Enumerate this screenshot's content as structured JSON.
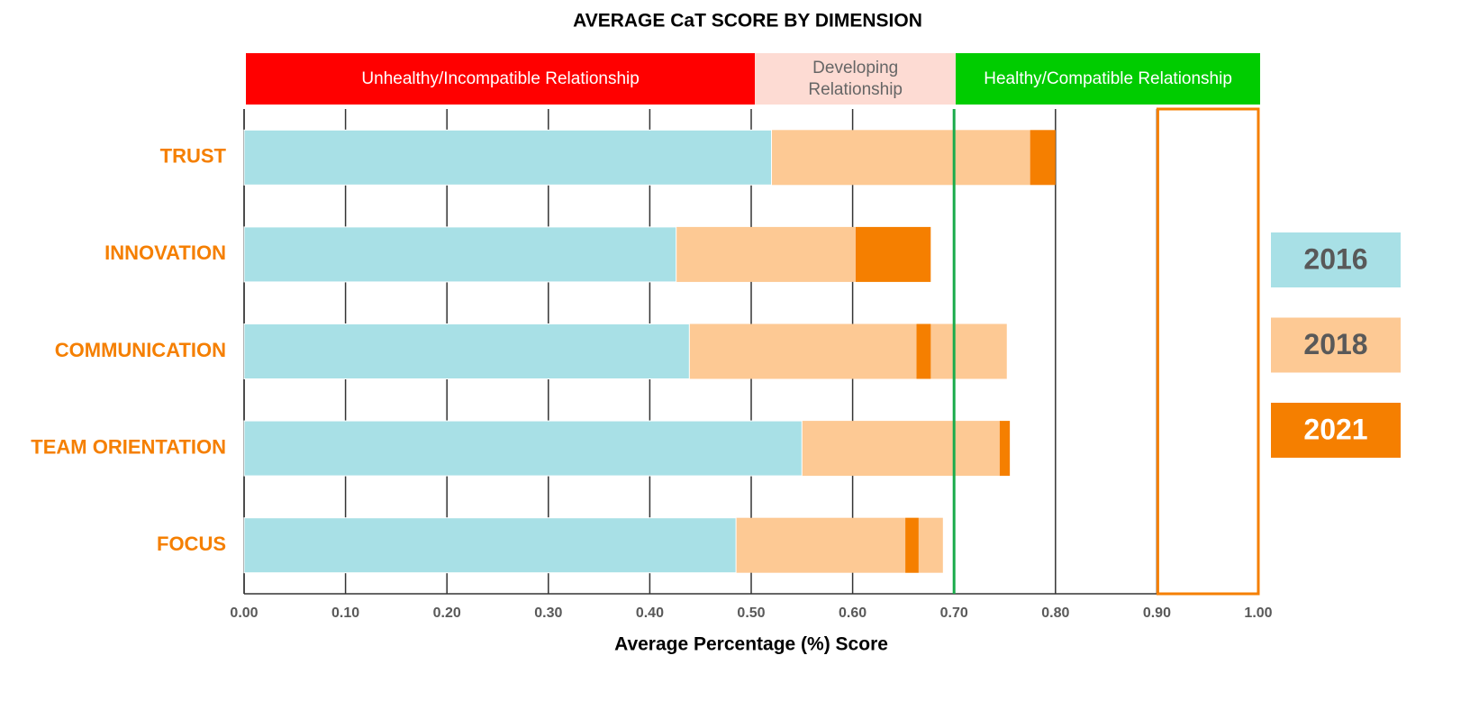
{
  "chart_data": {
    "type": "bar",
    "orientation": "horizontal",
    "title": "AVERAGE CaT SCORE BY DIMENSION",
    "x_label": "Average Percentage (%) Score",
    "categories": [
      "TRUST",
      "INNOVATION",
      "COMMUNICATION",
      "TEAM ORIENTATION",
      "FOCUS"
    ],
    "series": [
      {
        "name": "2016",
        "color": "#a8e0e6",
        "text_color": "#595959",
        "values": [
          0.52,
          0.426,
          0.439,
          0.55,
          0.485
        ]
      },
      {
        "name": "2018",
        "color": "#fdc994",
        "text_color": "#595959",
        "values": [
          0.775,
          0.603,
          0.752,
          0.745,
          0.689
        ]
      },
      {
        "name": "2021",
        "color": "#f57f00",
        "text_color": "#ffffff",
        "values": [
          [
            0.775,
            0.8
          ],
          [
            0.603,
            0.677
          ],
          [
            0.663,
            0.677
          ],
          [
            0.745,
            0.755
          ],
          [
            0.652,
            0.665
          ]
        ]
      }
    ],
    "xlim": [
      0,
      1
    ],
    "xticks": [
      {
        "value": 0,
        "label": "0.00"
      },
      {
        "value": 0.1,
        "label": "0.10"
      },
      {
        "value": 0.2,
        "label": "0.20"
      },
      {
        "value": 0.3,
        "label": "0.30"
      },
      {
        "value": 0.4,
        "label": "0.40"
      },
      {
        "value": 0.5,
        "label": "0.50"
      },
      {
        "value": 0.6,
        "label": "0.60"
      },
      {
        "value": 0.7,
        "label": "0.70"
      },
      {
        "value": 0.8,
        "label": "0.80"
      },
      {
        "value": 0.9,
        "label": "0.90"
      },
      {
        "value": 1,
        "label": "1.00"
      }
    ],
    "grid": true,
    "threshold": {
      "value": 0.7,
      "color": "#1aab4b"
    },
    "highlight": {
      "range": [
        0.9,
        1
      ],
      "color": "#f57f00"
    },
    "zones": [
      {
        "label": "Unhealthy/Incompatible Relationship",
        "range": [
          0,
          0.502
        ],
        "color": "#ff0000",
        "text_color": "#ffffff"
      },
      {
        "label": "Developing Relationship",
        "range": [
          0.502,
          0.7
        ],
        "color": "#fddbd3",
        "text_color": "#666666"
      },
      {
        "label": "Healthy/Compatible Relationship",
        "range": [
          0.7,
          1
        ],
        "color": "#00cc00",
        "text_color": "#ffffff"
      }
    ],
    "legend": "right"
  }
}
